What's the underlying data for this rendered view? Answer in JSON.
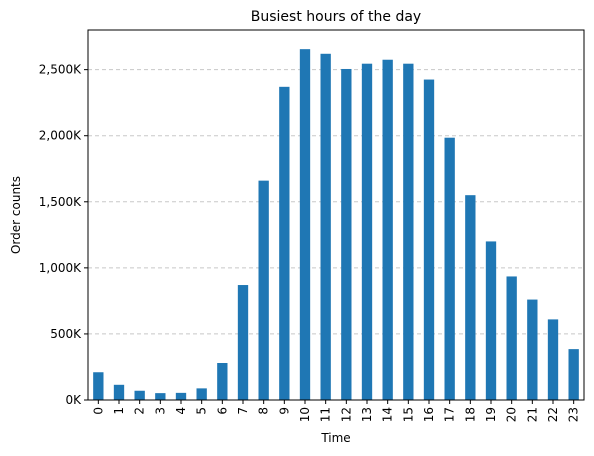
{
  "chart_data": {
    "type": "bar",
    "title": "Busiest hours of the day",
    "xlabel": "Time",
    "ylabel": "Order counts",
    "categories": [
      "0",
      "1",
      "2",
      "3",
      "4",
      "5",
      "6",
      "7",
      "8",
      "9",
      "10",
      "11",
      "12",
      "13",
      "14",
      "15",
      "16",
      "17",
      "18",
      "19",
      "20",
      "21",
      "22",
      "23"
    ],
    "values": [
      210000,
      115000,
      70000,
      52000,
      54000,
      88000,
      280000,
      870000,
      1660000,
      2370000,
      2655000,
      2620000,
      2505000,
      2545000,
      2575000,
      2545000,
      2425000,
      1985000,
      1550000,
      1200000,
      935000,
      760000,
      610000,
      385000
    ],
    "ylim": [
      0,
      2800000
    ],
    "yticks": [
      0,
      500000,
      1000000,
      1500000,
      2000000,
      2500000
    ],
    "ytick_labels": [
      "0K",
      "500K",
      "1,000K",
      "1,500K",
      "2,000K",
      "2,500K"
    ],
    "grid": "y-dashed",
    "bar_color": "#1f77b4",
    "grid_color": "#c8c8c8"
  }
}
